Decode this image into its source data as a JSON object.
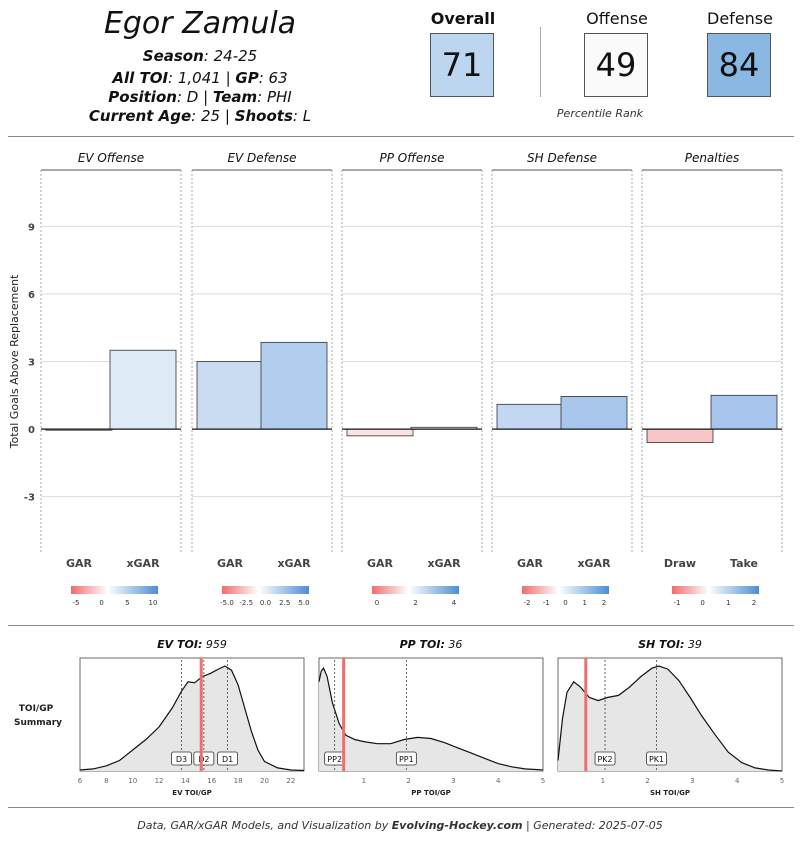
{
  "player": {
    "name": "Egor Zamula",
    "season_label": "Season",
    "season": "24-25",
    "toi_label": "All TOI",
    "toi": "1,041",
    "gp_label": "GP",
    "gp": "63",
    "position_label": "Position",
    "position": "D",
    "team_label": "Team",
    "team": "PHI",
    "age_label": "Current Age",
    "age": "25",
    "shoots_label": "Shoots",
    "shoots": "L"
  },
  "scores": {
    "overall_label": "Overall",
    "overall": "71",
    "offense_label": "Offense",
    "offense": "49",
    "defense_label": "Defense",
    "defense": "84",
    "percentile_label": "Percentile Rank",
    "colors": {
      "overall": "#bdd6ef",
      "offense": "#fafafa",
      "defense": "#8ab8e3"
    }
  },
  "chart_data": [
    {
      "type": "bar",
      "ylabel": "Total Goals Above Replacement",
      "ylim": [
        -5.5,
        11.5
      ],
      "yticks": [
        -3,
        0,
        3,
        6,
        9
      ],
      "grid": true,
      "panels": [
        {
          "title": "EV Offense",
          "categories": [
            "GAR",
            "xGAR"
          ],
          "values": [
            -0.05,
            3.5
          ],
          "colors": [
            "#f6f2f2",
            "#deeaf6"
          ],
          "legend_ticks": [
            "-5",
            "0",
            "5",
            "10"
          ]
        },
        {
          "title": "EV Defense",
          "categories": [
            "GAR",
            "xGAR"
          ],
          "values": [
            3.0,
            3.85
          ],
          "colors": [
            "#c9dcf2",
            "#b3cdee"
          ],
          "legend_ticks": [
            "-5.0",
            "-2.5",
            "0.0",
            "2.5",
            "5.0"
          ]
        },
        {
          "title": "PP Offense",
          "categories": [
            "GAR",
            "xGAR"
          ],
          "values": [
            -0.3,
            0.08
          ],
          "colors": [
            "#fde3e3",
            "#f0f0f0"
          ],
          "legend_ticks": [
            "0",
            "2",
            "4"
          ]
        },
        {
          "title": "SH Defense",
          "categories": [
            "GAR",
            "xGAR"
          ],
          "values": [
            1.1,
            1.45
          ],
          "colors": [
            "#c2d7f2",
            "#a9c7ed"
          ],
          "legend_ticks": [
            "-2",
            "-1",
            "0",
            "1",
            "2"
          ]
        },
        {
          "title": "Penalties",
          "categories": [
            "Draw",
            "Take"
          ],
          "values": [
            -0.6,
            1.5
          ],
          "colors": [
            "#f8c7c7",
            "#a7c5ec"
          ],
          "legend_ticks": [
            "-1",
            "0",
            "1",
            "2"
          ]
        }
      ]
    },
    {
      "type": "area",
      "row_label": [
        "TOI/GP",
        "Summary"
      ],
      "panels": [
        {
          "title_label": "EV TOI",
          "title_value": "959",
          "xlabel": "EV TOI/GP",
          "xlim": [
            6,
            23
          ],
          "xticks": [
            6,
            8,
            10,
            12,
            14,
            16,
            18,
            20,
            22
          ],
          "player_value": 15.2,
          "markers": [
            {
              "label": "D3",
              "x": 13.7
            },
            {
              "label": "D2",
              "x": 15.4
            },
            {
              "label": "D1",
              "x": 17.2
            }
          ],
          "density": [
            [
              6,
              0.01
            ],
            [
              7,
              0.02
            ],
            [
              8,
              0.05
            ],
            [
              9,
              0.1
            ],
            [
              10,
              0.2
            ],
            [
              11,
              0.3
            ],
            [
              12,
              0.42
            ],
            [
              13,
              0.6
            ],
            [
              13.7,
              0.76
            ],
            [
              14.2,
              0.85
            ],
            [
              14.7,
              0.84
            ],
            [
              15.3,
              0.9
            ],
            [
              15.9,
              0.93
            ],
            [
              16.5,
              0.97
            ],
            [
              17,
              1.0
            ],
            [
              17.5,
              0.96
            ],
            [
              18,
              0.82
            ],
            [
              18.5,
              0.6
            ],
            [
              19,
              0.38
            ],
            [
              19.5,
              0.2
            ],
            [
              20,
              0.09
            ],
            [
              21,
              0.03
            ],
            [
              22,
              0.01
            ],
            [
              23,
              0.005
            ]
          ]
        },
        {
          "title_label": "PP TOI",
          "title_value": "36",
          "xlabel": "PP TOI/GP",
          "xlim": [
            0,
            5
          ],
          "xticks": [
            1,
            2,
            3,
            4,
            5
          ],
          "player_value": 0.55,
          "markers": [
            {
              "label": "PP2",
              "x": 0.35
            },
            {
              "label": "PP1",
              "x": 1.95
            }
          ],
          "density": [
            [
              0,
              0.85
            ],
            [
              0.05,
              0.95
            ],
            [
              0.1,
              0.98
            ],
            [
              0.18,
              0.9
            ],
            [
              0.3,
              0.65
            ],
            [
              0.45,
              0.45
            ],
            [
              0.6,
              0.34
            ],
            [
              0.8,
              0.3
            ],
            [
              1.0,
              0.28
            ],
            [
              1.3,
              0.26
            ],
            [
              1.6,
              0.26
            ],
            [
              1.9,
              0.3
            ],
            [
              2.2,
              0.32
            ],
            [
              2.5,
              0.31
            ],
            [
              2.8,
              0.27
            ],
            [
              3.1,
              0.22
            ],
            [
              3.4,
              0.17
            ],
            [
              3.7,
              0.12
            ],
            [
              4.0,
              0.07
            ],
            [
              4.3,
              0.04
            ],
            [
              4.6,
              0.02
            ],
            [
              5,
              0.01
            ]
          ]
        },
        {
          "title_label": "SH TOI",
          "title_value": "39",
          "xlabel": "SH TOI/GP",
          "xlim": [
            0,
            5
          ],
          "xticks": [
            1,
            2,
            3,
            4,
            5
          ],
          "player_value": 0.62,
          "markers": [
            {
              "label": "PK2",
              "x": 1.05
            },
            {
              "label": "PK1",
              "x": 2.2
            }
          ],
          "density": [
            [
              0,
              0.1
            ],
            [
              0.1,
              0.5
            ],
            [
              0.2,
              0.75
            ],
            [
              0.35,
              0.85
            ],
            [
              0.5,
              0.8
            ],
            [
              0.7,
              0.7
            ],
            [
              0.9,
              0.67
            ],
            [
              1.1,
              0.7
            ],
            [
              1.35,
              0.72
            ],
            [
              1.6,
              0.8
            ],
            [
              1.85,
              0.9
            ],
            [
              2.1,
              0.98
            ],
            [
              2.25,
              1.0
            ],
            [
              2.45,
              0.97
            ],
            [
              2.7,
              0.86
            ],
            [
              2.95,
              0.7
            ],
            [
              3.2,
              0.53
            ],
            [
              3.5,
              0.35
            ],
            [
              3.8,
              0.18
            ],
            [
              4.1,
              0.08
            ],
            [
              4.4,
              0.03
            ],
            [
              4.7,
              0.01
            ],
            [
              5,
              0.0
            ]
          ]
        }
      ]
    }
  ],
  "footer": {
    "prefix": "Data, GAR/xGAR Models, and Visualization by",
    "brand": "Evolving-Hockey.com",
    "suffix": "| Generated: 2025-07-05"
  }
}
